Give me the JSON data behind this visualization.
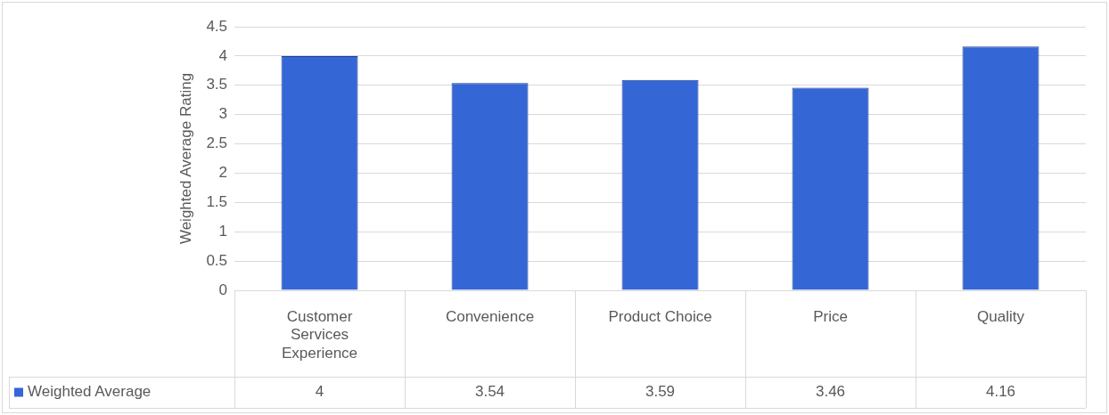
{
  "chart_data": {
    "type": "bar",
    "ylabel": "Weighted Average Rating",
    "categories": [
      "Customer Services Experience",
      "Convenience",
      "Product Choice",
      "Price",
      "Quality"
    ],
    "series": [
      {
        "name": "Weighted Average",
        "color": "#3566d6",
        "values": [
          4,
          3.54,
          3.59,
          3.46,
          4.16
        ]
      }
    ],
    "ylim": [
      0,
      4.5
    ],
    "yticks": [
      0,
      0.5,
      1,
      1.5,
      2,
      2.5,
      3,
      3.5,
      4,
      4.5
    ],
    "grid": "y",
    "legend": "bottom",
    "data_labels": true
  }
}
